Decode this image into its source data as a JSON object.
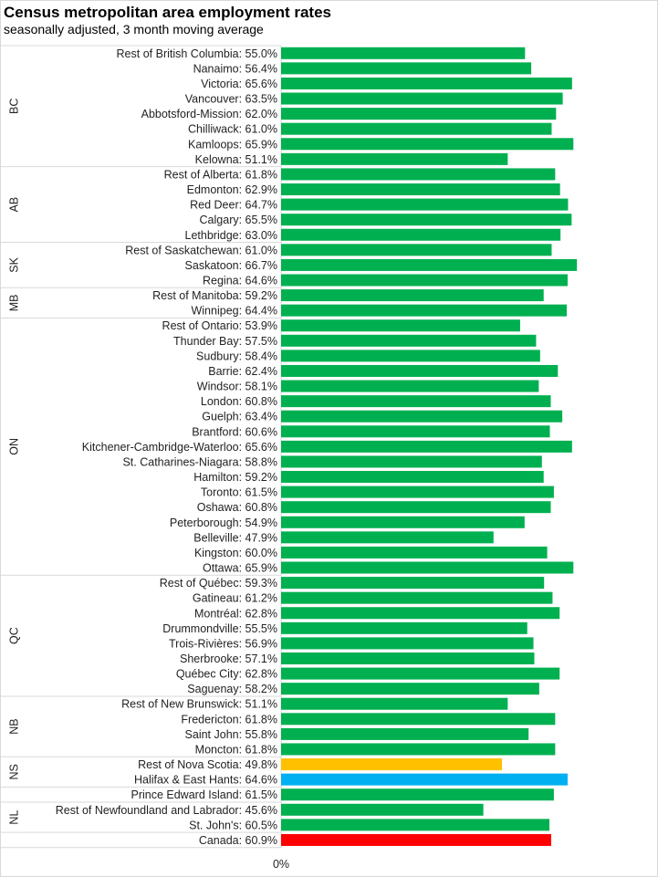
{
  "chart_data": {
    "type": "bar",
    "orientation": "horizontal",
    "title": "Census metropolitan area employment rates",
    "subtitle": "seasonally adjusted, 3 month moving average",
    "xlim": [
      0,
      80
    ],
    "x_ticks": [
      "0%",
      "10%",
      "20%",
      "30%",
      "40%",
      "50%",
      "60%",
      "70%",
      "80%"
    ],
    "grid": true,
    "colors": {
      "default": "#00B050",
      "ns_rest": "#FFC000",
      "halifax": "#00B0F0",
      "canada": "#FF0000"
    },
    "groups": [
      {
        "name": "BC",
        "items": [
          {
            "label": "Rest of British Columbia: 55.0%",
            "value": 55.0
          },
          {
            "label": "Nanaimo: 56.4%",
            "value": 56.4
          },
          {
            "label": "Victoria: 65.6%",
            "value": 65.6
          },
          {
            "label": "Vancouver: 63.5%",
            "value": 63.5
          },
          {
            "label": "Abbotsford-Mission: 62.0%",
            "value": 62.0
          },
          {
            "label": "Chilliwack: 61.0%",
            "value": 61.0
          },
          {
            "label": "Kamloops: 65.9%",
            "value": 65.9
          },
          {
            "label": "Kelowna: 51.1%",
            "value": 51.1
          }
        ]
      },
      {
        "name": "AB",
        "items": [
          {
            "label": "Rest of Alberta: 61.8%",
            "value": 61.8
          },
          {
            "label": "Edmonton: 62.9%",
            "value": 62.9
          },
          {
            "label": "Red Deer: 64.7%",
            "value": 64.7
          },
          {
            "label": "Calgary: 65.5%",
            "value": 65.5
          },
          {
            "label": "Lethbridge: 63.0%",
            "value": 63.0
          }
        ]
      },
      {
        "name": "SK",
        "items": [
          {
            "label": "Rest of Saskatchewan: 61.0%",
            "value": 61.0
          },
          {
            "label": "Saskatoon: 66.7%",
            "value": 66.7
          },
          {
            "label": "Regina: 64.6%",
            "value": 64.6
          }
        ]
      },
      {
        "name": "MB",
        "items": [
          {
            "label": "Rest of Manitoba: 59.2%",
            "value": 59.2
          },
          {
            "label": "Winnipeg: 64.4%",
            "value": 64.4
          }
        ]
      },
      {
        "name": "ON",
        "items": [
          {
            "label": "Rest of Ontario: 53.9%",
            "value": 53.9
          },
          {
            "label": "Thunder Bay: 57.5%",
            "value": 57.5
          },
          {
            "label": "Sudbury: 58.4%",
            "value": 58.4
          },
          {
            "label": "Barrie: 62.4%",
            "value": 62.4
          },
          {
            "label": "Windsor: 58.1%",
            "value": 58.1
          },
          {
            "label": "London: 60.8%",
            "value": 60.8
          },
          {
            "label": "Guelph: 63.4%",
            "value": 63.4
          },
          {
            "label": "Brantford: 60.6%",
            "value": 60.6
          },
          {
            "label": "Kitchener-Cambridge-Waterloo: 65.6%",
            "value": 65.6
          },
          {
            "label": "St. Catharines-Niagara: 58.8%",
            "value": 58.8
          },
          {
            "label": "Hamilton: 59.2%",
            "value": 59.2
          },
          {
            "label": "Toronto: 61.5%",
            "value": 61.5
          },
          {
            "label": "Oshawa: 60.8%",
            "value": 60.8
          },
          {
            "label": "Peterborough: 54.9%",
            "value": 54.9
          },
          {
            "label": "Belleville: 47.9%",
            "value": 47.9
          },
          {
            "label": "Kingston: 60.0%",
            "value": 60.0
          },
          {
            "label": "Ottawa: 65.9%",
            "value": 65.9
          }
        ]
      },
      {
        "name": "QC",
        "items": [
          {
            "label": "Rest of Québec: 59.3%",
            "value": 59.3
          },
          {
            "label": "Gatineau: 61.2%",
            "value": 61.2
          },
          {
            "label": "Montréal: 62.8%",
            "value": 62.8
          },
          {
            "label": "Drummondville: 55.5%",
            "value": 55.5
          },
          {
            "label": "Trois-Rivières: 56.9%",
            "value": 56.9
          },
          {
            "label": "Sherbrooke: 57.1%",
            "value": 57.1
          },
          {
            "label": "Québec City: 62.8%",
            "value": 62.8
          },
          {
            "label": "Saguenay: 58.2%",
            "value": 58.2
          }
        ]
      },
      {
        "name": "NB",
        "items": [
          {
            "label": "Rest of New Brunswick: 51.1%",
            "value": 51.1
          },
          {
            "label": "Fredericton: 61.8%",
            "value": 61.8
          },
          {
            "label": "Saint John: 55.8%",
            "value": 55.8
          },
          {
            "label": "Moncton: 61.8%",
            "value": 61.8
          }
        ]
      },
      {
        "name": "NS",
        "items": [
          {
            "label": "Rest of Nova Scotia: 49.8%",
            "value": 49.8,
            "color": "#FFC000"
          },
          {
            "label": "Halifax & East Hants: 64.6%",
            "value": 64.6,
            "color": "#00B0F0"
          }
        ]
      },
      {
        "name": "",
        "items": [
          {
            "label": "Prince Edward Island: 61.5%",
            "value": 61.5
          }
        ]
      },
      {
        "name": "NL",
        "items": [
          {
            "label": "Rest of Newfoundland and Labrador: 45.6%",
            "value": 45.6
          },
          {
            "label": "St. John's: 60.5%",
            "value": 60.5
          }
        ]
      },
      {
        "name": "",
        "items": [
          {
            "label": "Canada: 60.9%",
            "value": 60.9,
            "color": "#FF0000"
          }
        ]
      }
    ]
  }
}
